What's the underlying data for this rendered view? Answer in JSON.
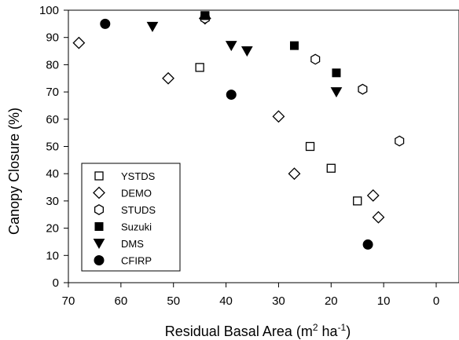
{
  "chart_data": {
    "type": "scatter",
    "title": "",
    "xlabel": "Residual Basal Area (m",
    "xlabel_sup1": "2",
    "xlabel_mid": " ha",
    "xlabel_sup2": "-1",
    "xlabel_end": ")",
    "ylabel": "Canopy Closure (%)",
    "xlim": [
      70,
      0
    ],
    "x_reversed": true,
    "ylim": [
      0,
      100
    ],
    "xticks": [
      70,
      60,
      50,
      40,
      30,
      20,
      10,
      0
    ],
    "yticks": [
      0,
      10,
      20,
      30,
      40,
      50,
      60,
      70,
      80,
      90,
      100
    ],
    "grid": false,
    "legend_position": "lower-left",
    "series": [
      {
        "name": "YSTDS",
        "marker": "open-square",
        "points": [
          [
            44,
            98
          ],
          [
            45,
            79
          ],
          [
            24,
            50
          ],
          [
            20,
            42
          ],
          [
            15,
            30
          ]
        ]
      },
      {
        "name": "DEMO",
        "marker": "open-diamond",
        "points": [
          [
            68,
            88
          ],
          [
            51,
            75
          ],
          [
            44,
            97
          ],
          [
            30,
            61
          ],
          [
            27,
            40
          ],
          [
            12,
            32
          ],
          [
            11,
            24
          ]
        ]
      },
      {
        "name": "STUDS",
        "marker": "open-hexagon",
        "points": [
          [
            44,
            97
          ],
          [
            23,
            82
          ],
          [
            14,
            71
          ],
          [
            7,
            52
          ]
        ]
      },
      {
        "name": "Suzuki",
        "marker": "filled-square",
        "points": [
          [
            44,
            98
          ],
          [
            27,
            87
          ],
          [
            19,
            77
          ]
        ]
      },
      {
        "name": "DMS",
        "marker": "filled-triangle-down",
        "points": [
          [
            54,
            94
          ],
          [
            39,
            87
          ],
          [
            36,
            85
          ],
          [
            19,
            70
          ]
        ]
      },
      {
        "name": "CFIRP",
        "marker": "filled-circle",
        "points": [
          [
            63,
            95
          ],
          [
            39,
            69
          ],
          [
            13,
            14
          ]
        ]
      }
    ]
  }
}
